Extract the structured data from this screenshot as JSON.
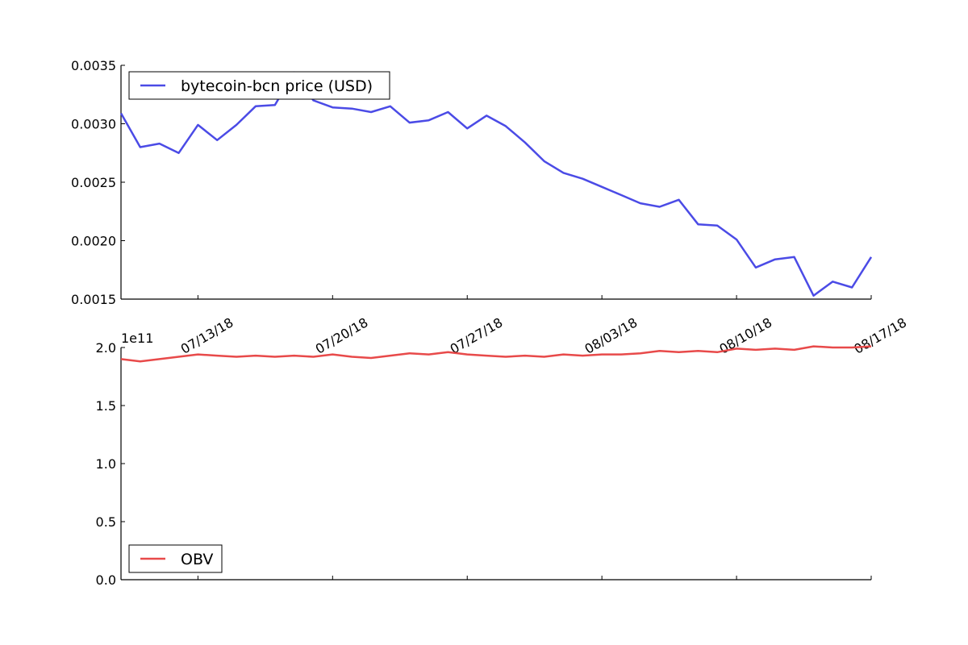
{
  "chart_data": [
    {
      "type": "line",
      "title": "",
      "xlabel": "",
      "ylabel": "",
      "x": [
        "2018-07-09",
        "2018-07-10",
        "2018-07-11",
        "2018-07-12",
        "2018-07-13",
        "2018-07-14",
        "2018-07-15",
        "2018-07-16",
        "2018-07-17",
        "2018-07-18",
        "2018-07-19",
        "2018-07-20",
        "2018-07-21",
        "2018-07-22",
        "2018-07-23",
        "2018-07-24",
        "2018-07-25",
        "2018-07-26",
        "2018-07-27",
        "2018-07-28",
        "2018-07-29",
        "2018-07-30",
        "2018-07-31",
        "2018-08-01",
        "2018-08-02",
        "2018-08-03",
        "2018-08-04",
        "2018-08-05",
        "2018-08-06",
        "2018-08-07",
        "2018-08-08",
        "2018-08-09",
        "2018-08-10",
        "2018-08-11",
        "2018-08-12",
        "2018-08-13",
        "2018-08-14",
        "2018-08-15",
        "2018-08-16",
        "2018-08-17"
      ],
      "series": [
        {
          "name": "bytecoin-bcn price (USD)",
          "color": "#4b4be6",
          "values": [
            0.00309,
            0.0028,
            0.00283,
            0.00275,
            0.00299,
            0.00286,
            0.00299,
            0.00315,
            0.00316,
            0.00344,
            0.0032,
            0.00314,
            0.00313,
            0.0031,
            0.00315,
            0.00301,
            0.00303,
            0.0031,
            0.00296,
            0.00307,
            0.00298,
            0.00284,
            0.00268,
            0.00258,
            0.00253,
            0.00246,
            0.00239,
            0.00232,
            0.00229,
            0.00235,
            0.00214,
            0.00213,
            0.00201,
            0.00177,
            0.00184,
            0.00186,
            0.00153,
            0.00165,
            0.0016,
            0.00186
          ]
        }
      ],
      "ylim": [
        0.0015,
        0.0035
      ],
      "yticks": [
        "0.0015",
        "0.0020",
        "0.0025",
        "0.0030",
        "0.0035"
      ],
      "xticks": [
        "07/13/18",
        "07/20/18",
        "07/27/18",
        "08/03/18",
        "08/10/18",
        "08/17/18"
      ],
      "legend_position": "top-left",
      "grid": false
    },
    {
      "type": "line",
      "title": "",
      "xlabel": "",
      "ylabel": "",
      "y_multiplier_label": "1e11",
      "x": [
        "2018-07-09",
        "2018-07-10",
        "2018-07-11",
        "2018-07-12",
        "2018-07-13",
        "2018-07-14",
        "2018-07-15",
        "2018-07-16",
        "2018-07-17",
        "2018-07-18",
        "2018-07-19",
        "2018-07-20",
        "2018-07-21",
        "2018-07-22",
        "2018-07-23",
        "2018-07-24",
        "2018-07-25",
        "2018-07-26",
        "2018-07-27",
        "2018-07-28",
        "2018-07-29",
        "2018-07-30",
        "2018-07-31",
        "2018-08-01",
        "2018-08-02",
        "2018-08-03",
        "2018-08-04",
        "2018-08-05",
        "2018-08-06",
        "2018-08-07",
        "2018-08-08",
        "2018-08-09",
        "2018-08-10",
        "2018-08-11",
        "2018-08-12",
        "2018-08-13",
        "2018-08-14",
        "2018-08-15",
        "2018-08-16",
        "2018-08-17"
      ],
      "series": [
        {
          "name": "OBV",
          "color": "#e84a4a",
          "values": [
            1.9,
            1.88,
            1.9,
            1.92,
            1.94,
            1.93,
            1.92,
            1.93,
            1.92,
            1.93,
            1.92,
            1.94,
            1.92,
            1.91,
            1.93,
            1.95,
            1.94,
            1.96,
            1.94,
            1.93,
            1.92,
            1.93,
            1.92,
            1.94,
            1.93,
            1.94,
            1.94,
            1.95,
            1.97,
            1.96,
            1.97,
            1.96,
            1.99,
            1.98,
            1.99,
            1.98,
            2.01,
            2.0,
            2.0,
            2.01
          ]
        }
      ],
      "ylim": [
        0.0,
        2.0
      ],
      "yticks": [
        "0.0",
        "0.5",
        "1.0",
        "1.5",
        "2.0"
      ],
      "legend_position": "bottom-left",
      "grid": false
    }
  ]
}
